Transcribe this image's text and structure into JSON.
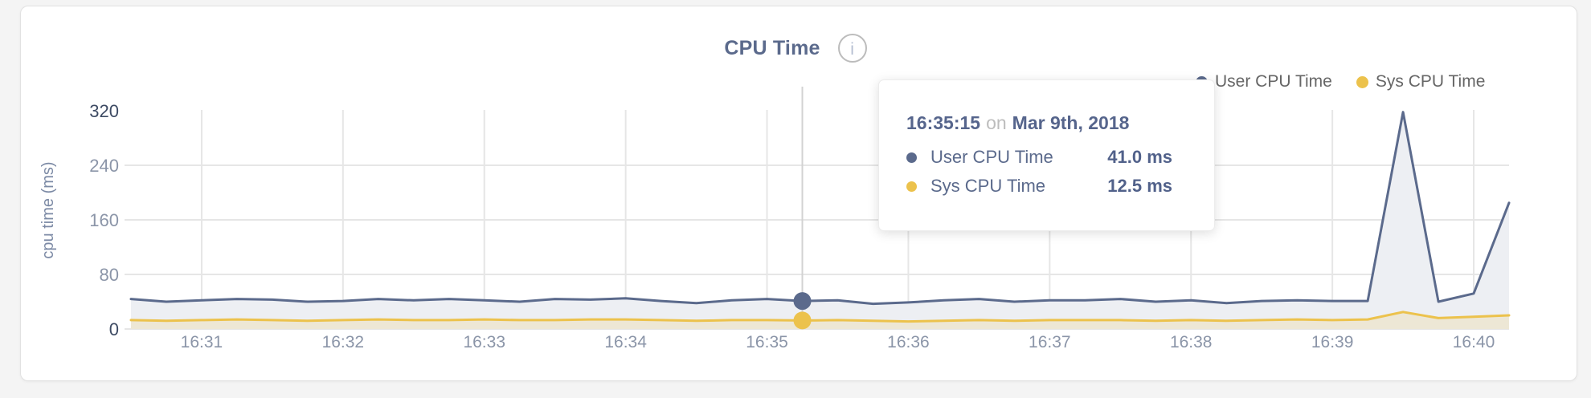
{
  "card": {
    "title": "CPU Time",
    "info_icon": "i"
  },
  "legend": [
    {
      "label": "User CPU Time",
      "color": "#5b6a8c"
    },
    {
      "label": "Sys CPU Time",
      "color": "#ecc24c"
    }
  ],
  "tooltip": {
    "time": "16:35:15",
    "conjunction": "on",
    "date": "Mar 9th, 2018",
    "rows": [
      {
        "label": "User CPU Time",
        "value": "41.0 ms",
        "color": "#5b6a8c"
      },
      {
        "label": "Sys CPU Time",
        "value": "12.5 ms",
        "color": "#ecc24c"
      }
    ]
  },
  "chart_data": {
    "type": "area",
    "title": "CPU Time",
    "xlabel": "",
    "ylabel": "cpu time (ms)",
    "ylim": [
      0,
      320
    ],
    "grid": true,
    "legend_position": "top-right",
    "y_tick_labels": [
      "0",
      "80",
      "160",
      "240",
      "320"
    ],
    "x_tick_labels": [
      "16:31",
      "16:32",
      "16:33",
      "16:34",
      "16:35",
      "16:36",
      "16:37",
      "16:38",
      "16:39",
      "16:40"
    ],
    "x": [
      "16:30:30",
      "16:30:45",
      "16:31:00",
      "16:31:15",
      "16:31:30",
      "16:31:45",
      "16:32:00",
      "16:32:15",
      "16:32:30",
      "16:32:45",
      "16:33:00",
      "16:33:15",
      "16:33:30",
      "16:33:45",
      "16:34:00",
      "16:34:15",
      "16:34:30",
      "16:34:45",
      "16:35:00",
      "16:35:15",
      "16:35:30",
      "16:35:45",
      "16:36:00",
      "16:36:15",
      "16:36:30",
      "16:36:45",
      "16:37:00",
      "16:37:15",
      "16:37:30",
      "16:37:45",
      "16:38:00",
      "16:38:15",
      "16:38:30",
      "16:38:45",
      "16:39:00",
      "16:39:15",
      "16:39:30",
      "16:39:45",
      "16:40:00",
      "16:40:15"
    ],
    "series": [
      {
        "name": "User CPU Time",
        "color": "#5b6a8c",
        "fill": "#edeff3",
        "values": [
          44,
          40,
          42,
          44,
          43,
          40,
          41,
          44,
          42,
          44,
          42,
          40,
          44,
          43,
          45,
          41,
          38,
          42,
          44,
          41,
          42,
          37,
          39,
          42,
          44,
          40,
          42,
          42,
          44,
          40,
          42,
          38,
          41,
          42,
          41,
          41,
          318,
          40,
          52,
          185
        ]
      },
      {
        "name": "Sys CPU Time",
        "color": "#ecc24c",
        "fill": "rgba(236,194,76,0.18)",
        "values": [
          13,
          12,
          13,
          14,
          13,
          12,
          13,
          14,
          13,
          13,
          14,
          13,
          13,
          14,
          14,
          13,
          12,
          13,
          13,
          12.5,
          13,
          12,
          11,
          12,
          13,
          12,
          13,
          13,
          13,
          12,
          13,
          12,
          13,
          14,
          13,
          14,
          25,
          16,
          18,
          20
        ]
      }
    ],
    "hover": {
      "index": 19,
      "time": "16:35:15"
    },
    "colors": {
      "grid": "#e6e6e6",
      "crosshair": "#d2d2d2",
      "axis_tick_light": "#8b95a8",
      "axis_tick_dark": "#3d4a63",
      "axis_title": "#7c8aa5"
    }
  }
}
